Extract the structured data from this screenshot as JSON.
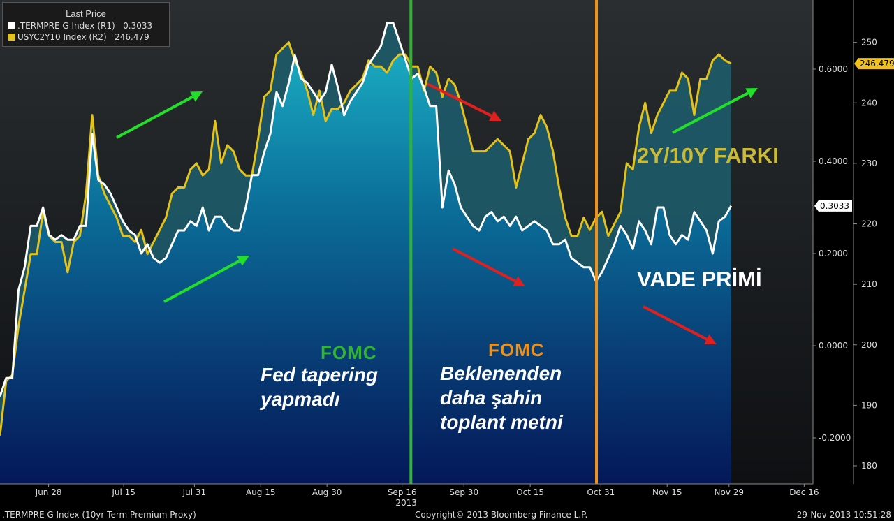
{
  "legend": {
    "title": "Last Price",
    "rows": [
      {
        "label": ".TERMPRE G Index  (R1)",
        "value": "0.3033",
        "color": "#ffffff"
      },
      {
        "label": "USYC2Y10 Index  (R2)",
        "value": "246.479",
        "color": "#e3c21c"
      }
    ]
  },
  "footer": {
    "left": ".TERMPRE G Index (10yr Term Premium Proxy)",
    "center": "Copyright© 2013 Bloomberg Finance L.P.",
    "right": "29-Nov-2013 10:51:28"
  },
  "annotations": {
    "spread_title": "2Y/10Y FARKI",
    "term_premium_title": "VADE PRİMİ",
    "fomc1_title": "FOMC",
    "fomc1_text_line1": "Fed tapering",
    "fomc1_text_line2": "yapmadı",
    "fomc2_title": "FOMC",
    "fomc2_text_line1": "Beklenenden",
    "fomc2_text_line2": "daha şahin",
    "fomc2_text_line3": "toplant metni"
  },
  "colors": {
    "term_premium": "#ffffff",
    "spread": "#e3c21c",
    "fomc1_line": "#31b531",
    "fomc2_line": "#f0921a",
    "arrow_up": "#22e02a",
    "arrow_down": "#e0201f"
  },
  "chart_data": {
    "type": "line",
    "x_start": "2013-06-17",
    "x_end": "2013-12-18",
    "x_ticks": [
      "Jun 28",
      "Jul 15",
      "Jul 31",
      "Aug 15",
      "Aug 30",
      "Sep 16",
      "Sep 30",
      "Oct 15",
      "Oct 31",
      "Nov 15",
      "Nov 29",
      "Dec 16"
    ],
    "x_tick_dates": [
      "2013-06-28",
      "2013-07-15",
      "2013-07-31",
      "2013-08-15",
      "2013-08-30",
      "2013-09-16",
      "2013-09-30",
      "2013-10-15",
      "2013-10-31",
      "2013-11-15",
      "2013-11-29",
      "2013-12-16"
    ],
    "x_year_label": "2013",
    "y_left": {
      "ticks": [],
      "range": [
        -0.3,
        0.75
      ]
    },
    "y_r1": {
      "ticks": [
        "0.6000",
        "0.4000",
        "0.2000",
        "0.0000",
        "-0.2000"
      ],
      "tick_values": [
        0.6,
        0.4,
        0.2,
        0.0,
        -0.2
      ],
      "range": [
        -0.3,
        0.75
      ],
      "last_label": "0.3033"
    },
    "y_r2": {
      "ticks": [
        "250",
        "240",
        "230",
        "220",
        "210",
        "200",
        "190",
        "180"
      ],
      "tick_values": [
        250,
        240,
        230,
        220,
        210,
        200,
        190,
        180
      ],
      "range": [
        177,
        257
      ],
      "last_label": "246.479"
    },
    "fomc_dates": [
      "2013-09-18",
      "2013-10-30"
    ],
    "series": [
      {
        "name": ".TERMPRE G Index",
        "axis": "R1",
        "values": [
          -0.11,
          -0.07,
          -0.07,
          0.12,
          0.17,
          0.26,
          0.26,
          0.3,
          0.24,
          0.23,
          0.24,
          0.23,
          0.23,
          0.26,
          0.26,
          0.46,
          0.36,
          0.35,
          0.33,
          0.3,
          0.27,
          0.25,
          0.24,
          0.2,
          0.22,
          0.19,
          0.18,
          0.19,
          0.22,
          0.25,
          0.25,
          0.27,
          0.26,
          0.3,
          0.25,
          0.28,
          0.28,
          0.26,
          0.25,
          0.25,
          0.3,
          0.37,
          0.37,
          0.42,
          0.46,
          0.55,
          0.52,
          0.57,
          0.63,
          0.58,
          0.57,
          0.55,
          0.53,
          0.55,
          0.61,
          0.56,
          0.5,
          0.53,
          0.55,
          0.57,
          0.61,
          0.63,
          0.65,
          0.7,
          0.7,
          0.66,
          0.62,
          0.58,
          0.59,
          0.56,
          0.52,
          0.52,
          0.3,
          0.38,
          0.35,
          0.3,
          0.28,
          0.26,
          0.25,
          0.28,
          0.29,
          0.27,
          0.28,
          0.26,
          0.28,
          0.25,
          0.26,
          0.27,
          0.26,
          0.25,
          0.22,
          0.22,
          0.23,
          0.19,
          0.18,
          0.17,
          0.17,
          0.14,
          0.16,
          0.19,
          0.22,
          0.26,
          0.24,
          0.21,
          0.27,
          0.25,
          0.22,
          0.3,
          0.3,
          0.24,
          0.22,
          0.24,
          0.23,
          0.29,
          0.27,
          0.25,
          0.2,
          0.27,
          0.28,
          0.3033
        ]
      },
      {
        "name": "USYC2Y10 Index",
        "axis": "R2",
        "values": [
          185,
          194,
          195,
          203,
          209,
          215,
          215,
          222,
          218,
          217,
          217,
          212,
          217,
          218,
          225,
          238,
          228,
          225,
          223,
          221,
          218,
          218,
          217,
          219,
          215,
          217,
          219,
          221,
          225,
          226,
          226,
          229,
          230,
          228,
          229,
          237,
          230,
          233,
          232,
          229,
          228,
          228,
          234,
          241,
          242,
          248,
          249,
          250,
          247,
          245,
          242,
          238,
          242,
          237,
          239,
          239,
          240,
          242,
          243,
          244,
          247,
          246,
          246,
          245,
          247,
          248,
          248,
          246,
          246,
          242,
          246,
          245,
          241,
          244,
          243,
          240,
          236,
          232,
          232,
          232,
          233,
          234,
          233,
          232,
          226,
          230,
          234,
          235,
          238,
          236,
          232,
          226,
          221,
          218,
          218,
          221,
          219,
          221,
          222,
          218,
          220,
          222,
          230,
          229,
          236,
          240,
          235,
          238,
          240,
          242,
          242,
          245,
          244,
          238,
          244,
          244,
          247,
          248,
          247,
          246.479
        ]
      }
    ]
  }
}
